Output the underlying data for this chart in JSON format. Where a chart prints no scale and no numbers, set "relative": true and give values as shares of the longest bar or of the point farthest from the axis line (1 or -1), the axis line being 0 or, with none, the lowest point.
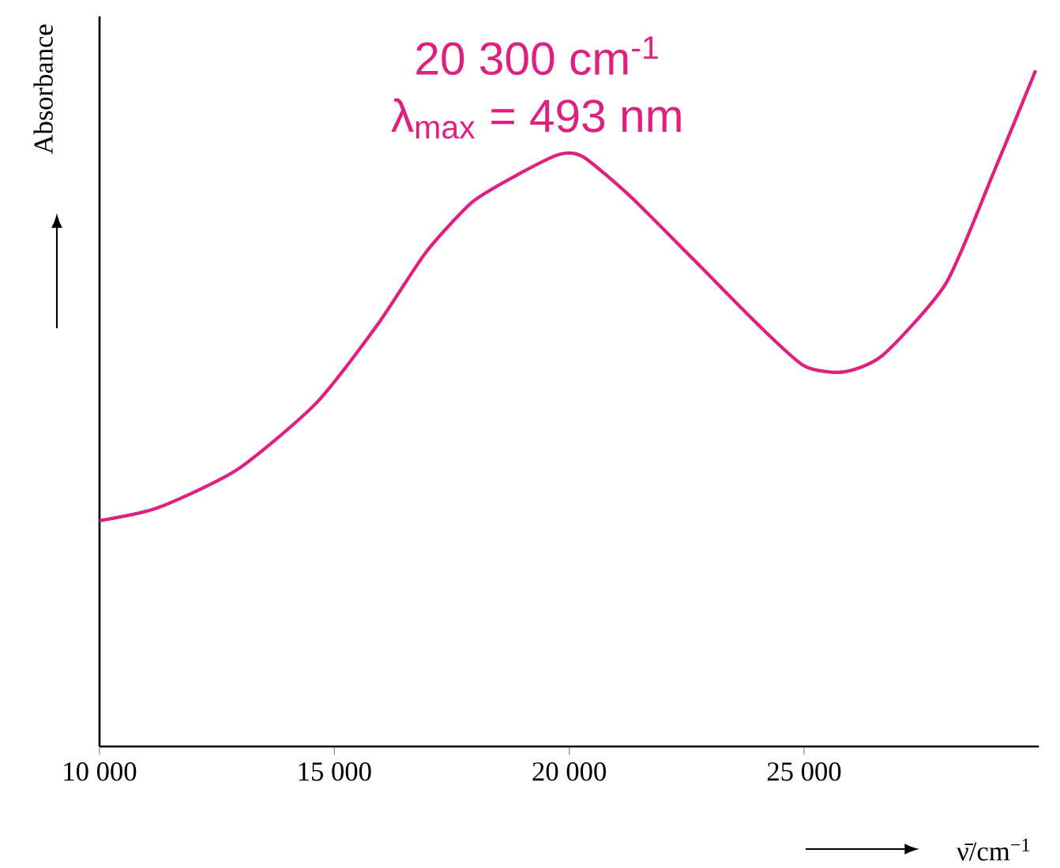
{
  "chart_data": {
    "type": "line",
    "relative": true,
    "xlabel": "ν̄/cm$^{−1}$",
    "ylabel": "Absorbance",
    "annotations": [
      "20 300 cm$^{-1}$",
      "λ$_{max}$ = 493 nm"
    ],
    "xlim": [
      10000,
      30000
    ],
    "xticks": [
      {
        "value": 10000,
        "label": "10 000"
      },
      {
        "value": 15000,
        "label": "15 000"
      },
      {
        "value": 20000,
        "label": "20 000"
      },
      {
        "value": 25000,
        "label": "25 000"
      }
    ],
    "marker": "none",
    "line_style": "solid",
    "series": [
      {
        "color": "#e0207f",
        "x": [
          10000,
          11240,
          12920,
          14600,
          15940,
          16950,
          17950,
          18960,
          19800,
          20300,
          21310,
          22650,
          23990,
          25000,
          25840,
          26680,
          28020,
          29030,
          29930
        ],
        "values": [
          0.334,
          0.353,
          0.409,
          0.507,
          0.626,
          0.731,
          0.806,
          0.848,
          0.876,
          0.872,
          0.813,
          0.72,
          0.626,
          0.563,
          0.554,
          0.579,
          0.685,
          0.848,
          1
        ]
      }
    ]
  }
}
